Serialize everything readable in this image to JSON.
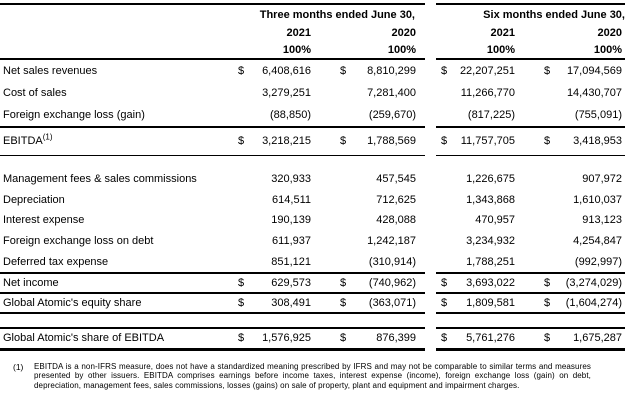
{
  "table": {
    "header": {
      "group1": "Three months ended June 30,",
      "group2": "Six months ended June 30,",
      "years": [
        "2021",
        "2020",
        "2021",
        "2020"
      ],
      "pcts": [
        "100%",
        "100%",
        "100%",
        "100%"
      ]
    },
    "rows": [
      {
        "label": "Net sales revenues",
        "cells": [
          {
            "cur": "$",
            "val": "6,408,616"
          },
          {
            "cur": "$",
            "val": "8,810,299"
          },
          {
            "cur": "$",
            "val": "22,207,251"
          },
          {
            "cur": "$",
            "val": "17,094,569"
          }
        ]
      },
      {
        "label": "Cost of sales",
        "cells": [
          {
            "cur": "",
            "val": "3,279,251"
          },
          {
            "cur": "",
            "val": "7,281,400"
          },
          {
            "cur": "",
            "val": "11,266,770"
          },
          {
            "cur": "",
            "val": "14,430,707"
          }
        ]
      },
      {
        "label": "Foreign exchange loss (gain)",
        "cells": [
          {
            "cur": "",
            "val": "(88,850)"
          },
          {
            "cur": "",
            "val": "(259,670)"
          },
          {
            "cur": "",
            "val": "(817,225)"
          },
          {
            "cur": "",
            "val": "(755,091)"
          }
        ]
      },
      {
        "label": "EBITDA",
        "sup": "(1)",
        "cells": [
          {
            "cur": "$",
            "val": "3,218,215"
          },
          {
            "cur": "$",
            "val": "1,788,569"
          },
          {
            "cur": "$",
            "val": "11,757,705"
          },
          {
            "cur": "$",
            "val": "3,418,953"
          }
        ]
      },
      {
        "label": "Management fees & sales commissions",
        "cells": [
          {
            "cur": "",
            "val": "320,933"
          },
          {
            "cur": "",
            "val": "457,545"
          },
          {
            "cur": "",
            "val": "1,226,675"
          },
          {
            "cur": "",
            "val": "907,972"
          }
        ]
      },
      {
        "label": "Depreciation",
        "cells": [
          {
            "cur": "",
            "val": "614,511"
          },
          {
            "cur": "",
            "val": "712,625"
          },
          {
            "cur": "",
            "val": "1,343,868"
          },
          {
            "cur": "",
            "val": "1,610,037"
          }
        ]
      },
      {
        "label": "Interest expense",
        "cells": [
          {
            "cur": "",
            "val": "190,139"
          },
          {
            "cur": "",
            "val": "428,088"
          },
          {
            "cur": "",
            "val": "470,957"
          },
          {
            "cur": "",
            "val": "913,123"
          }
        ]
      },
      {
        "label": "Foreign exchange loss on debt",
        "cells": [
          {
            "cur": "",
            "val": "611,937"
          },
          {
            "cur": "",
            "val": "1,242,187"
          },
          {
            "cur": "",
            "val": "3,234,932"
          },
          {
            "cur": "",
            "val": "4,254,847"
          }
        ]
      },
      {
        "label": "Deferred tax expense",
        "cells": [
          {
            "cur": "",
            "val": "851,121"
          },
          {
            "cur": "",
            "val": "(310,914)"
          },
          {
            "cur": "",
            "val": "1,788,251"
          },
          {
            "cur": "",
            "val": "(992,997)"
          }
        ]
      },
      {
        "label": "Net income",
        "cells": [
          {
            "cur": "$",
            "val": "629,573"
          },
          {
            "cur": "$",
            "val": "(740,962)"
          },
          {
            "cur": "$",
            "val": "3,693,022"
          },
          {
            "cur": "$",
            "val": "(3,274,029)"
          }
        ]
      },
      {
        "label": "Global Atomic's equity share",
        "cells": [
          {
            "cur": "$",
            "val": "308,491"
          },
          {
            "cur": "$",
            "val": "(363,071)"
          },
          {
            "cur": "$",
            "val": "1,809,581"
          },
          {
            "cur": "$",
            "val": "(1,604,274)"
          }
        ]
      },
      {
        "label": "Global Atomic's share of EBITDA",
        "cells": [
          {
            "cur": "$",
            "val": "1,576,925"
          },
          {
            "cur": "$",
            "val": "876,399"
          },
          {
            "cur": "$",
            "val": "5,761,276"
          },
          {
            "cur": "$",
            "val": "1,675,287"
          }
        ]
      }
    ]
  },
  "footnote": {
    "marker": "(1)",
    "text": "EBITDA is a non-IFRS measure, does not have a standardized meaning prescribed by IFRS and may not be comparable to similar terms and measures presented by other issuers. EBITDA comprises earnings before income taxes, interest expense (income), foreign exchange loss (gain) on debt, depreciation, management fees, sales commissions, losses (gains) on sale of property, plant and equipment and impairment charges."
  }
}
